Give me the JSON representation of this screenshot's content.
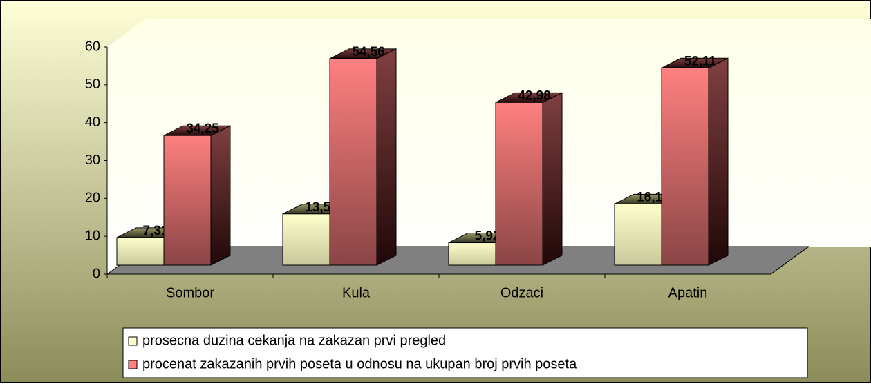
{
  "chart_data": {
    "type": "bar3d",
    "categories": [
      "Sombor",
      "Kula",
      "Odzaci",
      "Apatin"
    ],
    "series": [
      {
        "name": "prosecna duzina cekanja na zakazan prvi pregled",
        "color": "#ffffcc",
        "values": [
          7.31,
          13.53,
          5.92,
          16.17
        ],
        "value_labels": [
          "7,31",
          "13,53",
          "5,92",
          "16,17"
        ]
      },
      {
        "name": "procenat zakazanih prvih poseta u odnosu na ukupan broj prvih poseta",
        "color": "#ff8080",
        "values": [
          34.25,
          54.56,
          42.98,
          52.11
        ],
        "value_labels": [
          "34,25",
          "54,56",
          "42,98",
          "52,11"
        ]
      }
    ],
    "ylim": [
      0,
      60
    ],
    "yticks": [
      0,
      10,
      20,
      30,
      40,
      50,
      60
    ],
    "legend": "bottom"
  }
}
